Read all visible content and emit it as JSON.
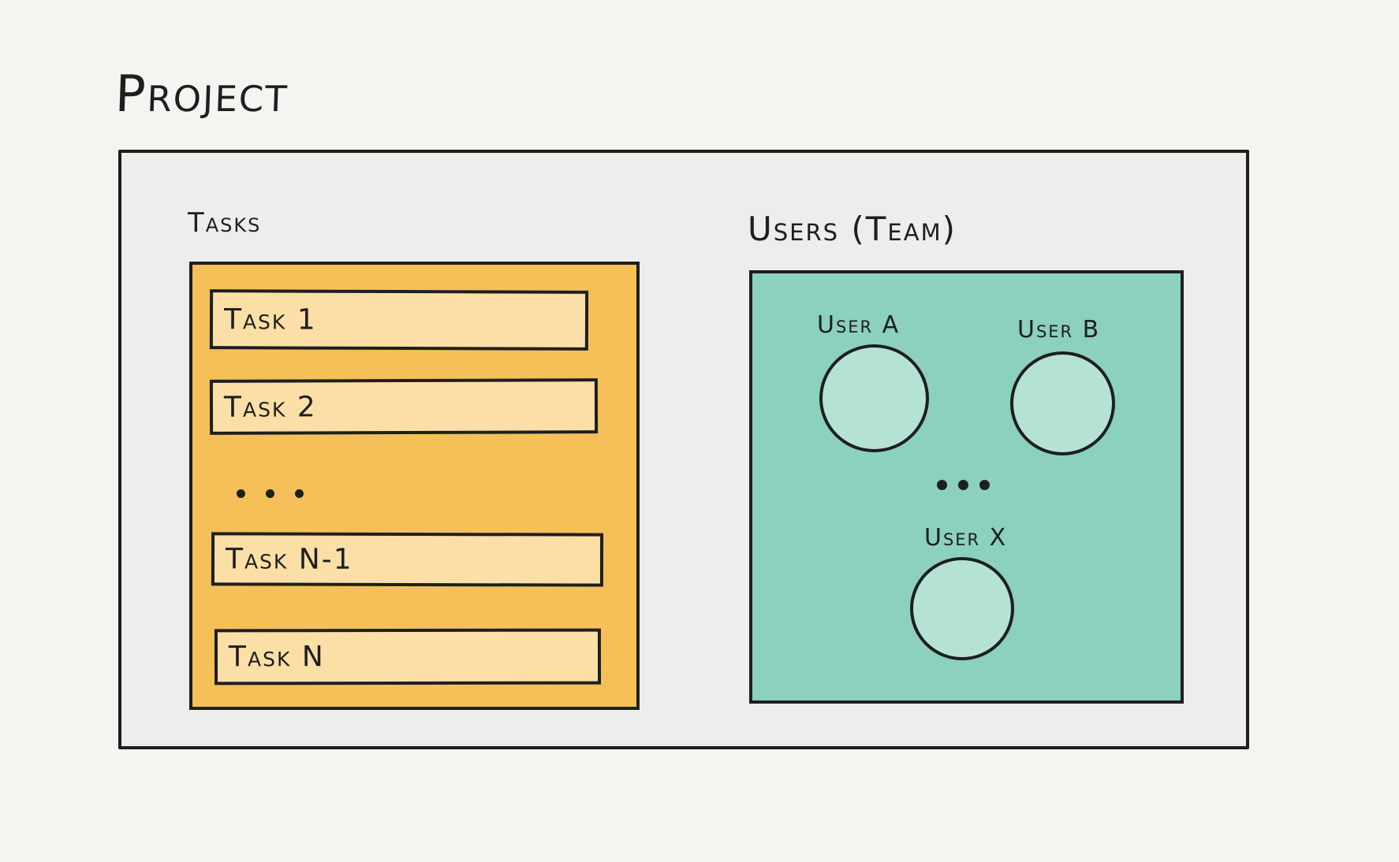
{
  "diagram": {
    "title": "Project",
    "tasks": {
      "heading": "Tasks",
      "items": [
        "Task 1",
        "Task 2",
        "Task N-1",
        "Task N"
      ],
      "ellipsis_count": 3,
      "panel_color": "#f4c057",
      "item_color": "#fbdfa6"
    },
    "users": {
      "heading": "Users (Team)",
      "members": [
        "User A",
        "User B",
        "User X"
      ],
      "ellipsis_count": 3,
      "panel_color": "#8bd1bd",
      "avatar_color": "#b4e3d5"
    },
    "frame_color": "#ededeb",
    "stroke_color": "#1e1e1e"
  }
}
